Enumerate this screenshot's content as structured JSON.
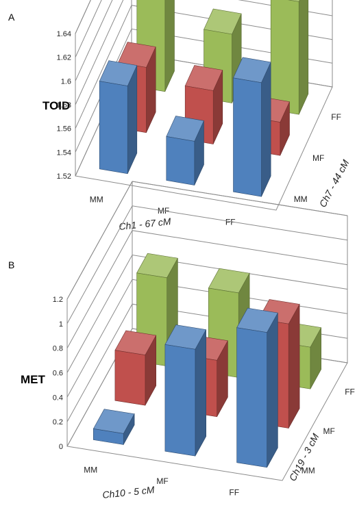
{
  "charts": [
    {
      "panel_label": "A",
      "chart_data": {
        "type": "bar",
        "ylabel": "TOID",
        "xlabel": "Ch1 - 67 cM",
        "zlabel": "Ch7 - 44 cM",
        "x_categories": [
          "MM",
          "MF",
          "FF"
        ],
        "z_categories": [
          "MM",
          "MF",
          "FF"
        ],
        "y_ticks": [
          "1.52",
          "1.54",
          "1.56",
          "1.58",
          "1.6",
          "1.62",
          "1.64"
        ],
        "ylim": [
          1.52,
          1.64
        ],
        "series": [
          {
            "name": "",
            "color": "#4f81bd",
            "values": [
              1.594,
              1.557,
              1.616
            ]
          },
          {
            "name": "",
            "color": "#c0504d",
            "values": [
              1.575,
              1.565,
              1.548
            ]
          },
          {
            "name": "",
            "color": "#9bbb59",
            "values": [
              1.638,
              1.578,
              1.615
            ]
          }
        ]
      }
    },
    {
      "panel_label": "B",
      "chart_data": {
        "type": "bar",
        "ylabel": "MET",
        "xlabel": "Ch10 - 5 cM",
        "zlabel": "Ch19 - 3 cM",
        "x_categories": [
          "MM",
          "MF",
          "FF"
        ],
        "z_categories": [
          "MM",
          "MF",
          "FF"
        ],
        "y_ticks": [
          "0",
          "0.2",
          "0.4",
          "0.6",
          "0.8",
          "1",
          "1.2"
        ],
        "ylim": [
          0,
          1.2
        ],
        "series": [
          {
            "name": "",
            "color": "#4f81bd",
            "values": [
              0.09,
              0.87,
              1.1
            ]
          },
          {
            "name": "",
            "color": "#c0504d",
            "values": [
              0.41,
              0.46,
              0.85
            ]
          },
          {
            "name": "",
            "color": "#9bbb59",
            "values": [
              0.72,
              0.69,
              0.34
            ]
          }
        ]
      }
    }
  ]
}
